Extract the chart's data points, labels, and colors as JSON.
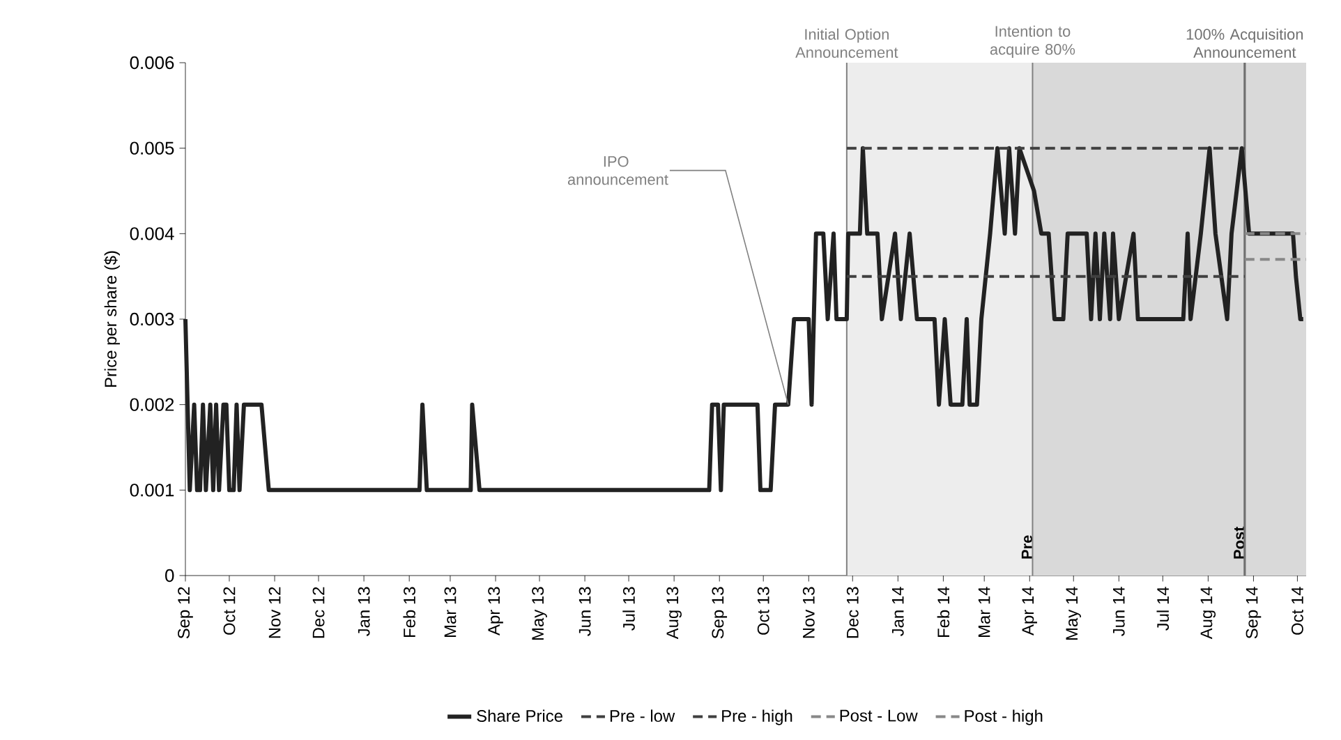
{
  "chart_data": {
    "type": "line",
    "ylabel": "Price per share ($)",
    "xlim": [
      "2012-09-01",
      "2014-10-07"
    ],
    "ylim": [
      0,
      0.006
    ],
    "yticks": [
      0,
      0.001,
      0.002,
      0.003,
      0.004,
      0.005,
      0.006
    ],
    "xticks": [
      {
        "value": "2012-09-01",
        "label": "Sep 12"
      },
      {
        "value": "2012-10-01",
        "label": "Oct 12"
      },
      {
        "value": "2012-11-01",
        "label": "Nov 12"
      },
      {
        "value": "2012-12-01",
        "label": "Dec 12"
      },
      {
        "value": "2013-01-01",
        "label": "Jan 13"
      },
      {
        "value": "2013-02-01",
        "label": "Feb 13"
      },
      {
        "value": "2013-03-01",
        "label": "Mar 13"
      },
      {
        "value": "2013-04-01",
        "label": "Apr 13"
      },
      {
        "value": "2013-05-01",
        "label": "May 13"
      },
      {
        "value": "2013-06-01",
        "label": "Jun 13"
      },
      {
        "value": "2013-07-01",
        "label": "Jul 13"
      },
      {
        "value": "2013-08-01",
        "label": "Aug 13"
      },
      {
        "value": "2013-09-01",
        "label": "Sep 13"
      },
      {
        "value": "2013-10-01",
        "label": "Oct 13"
      },
      {
        "value": "2013-11-01",
        "label": "Nov 13"
      },
      {
        "value": "2013-12-01",
        "label": "Dec 13"
      },
      {
        "value": "2014-01-01",
        "label": "Jan 14"
      },
      {
        "value": "2014-02-01",
        "label": "Feb 14"
      },
      {
        "value": "2014-03-01",
        "label": "Mar 14"
      },
      {
        "value": "2014-04-01",
        "label": "Apr 14"
      },
      {
        "value": "2014-05-01",
        "label": "May 14"
      },
      {
        "value": "2014-06-01",
        "label": "Jun 14"
      },
      {
        "value": "2014-07-01",
        "label": "Jul 14"
      },
      {
        "value": "2014-08-01",
        "label": "Aug 14"
      },
      {
        "value": "2014-09-01",
        "label": "Sep 14"
      },
      {
        "value": "2014-10-01",
        "label": "Oct 14"
      }
    ],
    "legend": "bottom",
    "marker": "none",
    "series": [
      {
        "name": "Share Price",
        "color": "#222222",
        "line_style": "solid",
        "x": [
          "2012-09-01",
          "2012-09-04",
          "2012-09-07",
          "2012-09-09",
          "2012-09-11",
          "2012-09-13",
          "2012-09-15",
          "2012-09-18",
          "2012-09-20",
          "2012-09-22",
          "2012-09-24",
          "2012-09-27",
          "2012-09-29",
          "2012-10-01",
          "2012-10-04",
          "2012-10-06",
          "2012-10-08",
          "2012-10-11",
          "2012-10-23",
          "2012-10-28",
          "2013-02-08",
          "2013-02-10",
          "2013-02-13",
          "2013-03-15",
          "2013-03-16",
          "2013-03-21",
          "2013-08-25",
          "2013-08-27",
          "2013-08-31",
          "2013-09-02",
          "2013-09-04",
          "2013-09-27",
          "2013-09-29",
          "2013-10-06",
          "2013-10-09",
          "2013-10-18",
          "2013-10-22",
          "2013-11-01",
          "2013-11-03",
          "2013-11-06",
          "2013-11-11",
          "2013-11-14",
          "2013-11-18",
          "2013-11-20",
          "2013-11-27",
          "2013-11-28",
          "2013-12-06",
          "2013-12-08",
          "2013-12-11",
          "2013-12-18",
          "2013-12-21",
          "2013-12-30",
          "2014-01-03",
          "2014-01-09",
          "2014-01-14",
          "2014-01-26",
          "2014-01-29",
          "2014-02-02",
          "2014-02-06",
          "2014-02-14",
          "2014-02-17",
          "2014-02-19",
          "2014-02-24",
          "2014-02-27",
          "2014-03-05",
          "2014-03-10",
          "2014-03-15",
          "2014-03-18",
          "2014-03-22",
          "2014-03-25",
          "2014-04-04",
          "2014-04-09",
          "2014-04-14",
          "2014-04-18",
          "2014-04-24",
          "2014-04-27",
          "2014-05-10",
          "2014-05-13",
          "2014-05-16",
          "2014-05-19",
          "2014-05-22",
          "2014-05-26",
          "2014-05-28",
          "2014-06-01",
          "2014-06-11",
          "2014-06-14",
          "2014-07-15",
          "2014-07-18",
          "2014-07-20",
          "2014-07-27",
          "2014-08-02",
          "2014-08-06",
          "2014-08-14",
          "2014-08-17",
          "2014-08-24",
          "2014-08-29",
          "2014-09-28",
          "2014-09-30",
          "2014-10-03",
          "2014-10-05"
        ],
        "values": [
          0.003,
          0.001,
          0.002,
          0.001,
          0.001,
          0.002,
          0.001,
          0.002,
          0.001,
          0.002,
          0.001,
          0.002,
          0.002,
          0.001,
          0.001,
          0.002,
          0.001,
          0.002,
          0.002,
          0.001,
          0.001,
          0.002,
          0.001,
          0.001,
          0.002,
          0.001,
          0.001,
          0.002,
          0.002,
          0.001,
          0.002,
          0.002,
          0.001,
          0.001,
          0.002,
          0.002,
          0.003,
          0.003,
          0.002,
          0.004,
          0.004,
          0.003,
          0.004,
          0.003,
          0.003,
          0.004,
          0.004,
          0.005,
          0.004,
          0.004,
          0.003,
          0.004,
          0.003,
          0.004,
          0.003,
          0.003,
          0.002,
          0.003,
          0.002,
          0.002,
          0.003,
          0.002,
          0.002,
          0.003,
          0.004,
          0.005,
          0.004,
          0.005,
          0.004,
          0.005,
          0.0045,
          0.004,
          0.004,
          0.003,
          0.003,
          0.004,
          0.004,
          0.003,
          0.004,
          0.003,
          0.004,
          0.003,
          0.004,
          0.003,
          0.004,
          0.003,
          0.003,
          0.004,
          0.003,
          0.004,
          0.005,
          0.004,
          0.003,
          0.004,
          0.005,
          0.004,
          0.004,
          0.0035,
          0.003,
          0.003
        ]
      },
      {
        "name": "Pre - low",
        "color": "#404040",
        "line_style": "dashed",
        "x": [
          "2013-11-27",
          "2014-08-26"
        ],
        "values": [
          0.0035,
          0.0035
        ]
      },
      {
        "name": "Pre - high",
        "color": "#404040",
        "line_style": "dashed",
        "x": [
          "2013-11-27",
          "2014-08-26"
        ],
        "values": [
          0.005,
          0.005
        ]
      },
      {
        "name": "Post - Low",
        "color": "#888888",
        "line_style": "dashed",
        "x": [
          "2014-08-26",
          "2014-10-07"
        ],
        "values": [
          0.0037,
          0.0037
        ]
      },
      {
        "name": "Post - high",
        "color": "#888888",
        "line_style": "dashed",
        "x": [
          "2014-08-26",
          "2014-10-07"
        ],
        "values": [
          0.004,
          0.004
        ]
      }
    ],
    "bands": [
      {
        "axis": "x",
        "from": "2013-11-27",
        "to": "2014-04-03",
        "color": "#ededed"
      },
      {
        "axis": "x",
        "from": "2014-04-03",
        "to": "2014-08-26",
        "label": "Pre",
        "color": "#d9d9d9"
      },
      {
        "axis": "x",
        "from": "2014-08-26",
        "to": "2014-10-07",
        "label": "Post",
        "color": "#d9d9d9"
      }
    ],
    "ref_lines": [
      {
        "axis": "x",
        "value": "2013-11-27",
        "label": "Initial Option Announcement",
        "color": "#808080"
      },
      {
        "axis": "x",
        "value": "2014-04-03",
        "label": "Intention to acquire 80%",
        "color": "#808080"
      },
      {
        "axis": "x",
        "value": "2014-08-26",
        "label": "100% Acquisition Announcement",
        "color": "#707070"
      }
    ],
    "annotations": [
      {
        "text": "IPO announcement",
        "x": "2013-10-18",
        "y": 0.002
      }
    ]
  }
}
